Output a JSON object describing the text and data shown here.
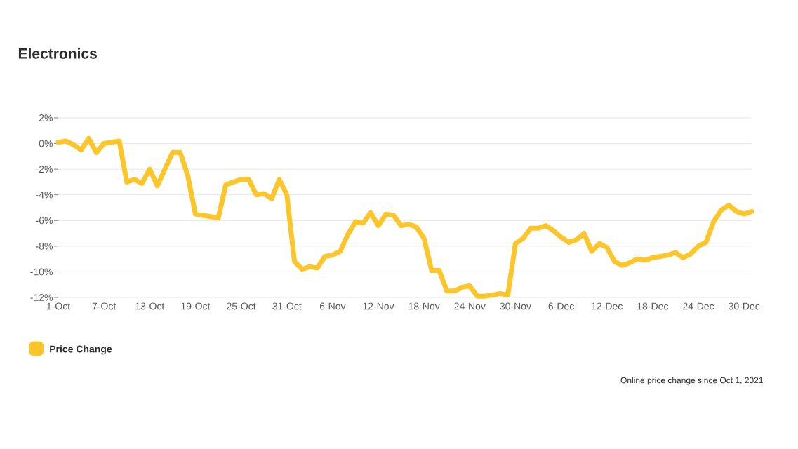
{
  "chart_data": {
    "type": "line",
    "title": "Electronics",
    "annotations": [
      "Online price change since Oct 1, 2021"
    ],
    "categories": [
      "1-Oct",
      null,
      null,
      null,
      null,
      null,
      "7-Oct",
      null,
      null,
      null,
      null,
      null,
      "13-Oct",
      null,
      null,
      null,
      null,
      null,
      "19-Oct",
      null,
      null,
      null,
      null,
      null,
      "25-Oct",
      null,
      null,
      null,
      null,
      null,
      "31-Oct",
      null,
      null,
      null,
      null,
      null,
      "6-Nov",
      null,
      null,
      null,
      null,
      null,
      "12-Nov",
      null,
      null,
      null,
      null,
      null,
      "18-Nov",
      null,
      null,
      null,
      null,
      null,
      "24-Nov",
      null,
      null,
      null,
      null,
      null,
      "30-Nov",
      null,
      null,
      null,
      null,
      null,
      "6-Dec",
      null,
      null,
      null,
      null,
      null,
      "12-Dec",
      null,
      null,
      null,
      null,
      null,
      "18-Dec",
      null,
      null,
      null,
      null,
      null,
      "24-Dec",
      null,
      null,
      null,
      null,
      null,
      "30-Dec",
      null
    ],
    "series": [
      {
        "name": "Price Change",
        "color": "#fcc62b",
        "values": [
          0.1,
          0.2,
          -0.1,
          -0.5,
          0.4,
          -0.7,
          0.0,
          0.1,
          0.2,
          -3.0,
          -2.8,
          -3.1,
          -2.0,
          -3.3,
          -2.0,
          -0.7,
          -0.7,
          -2.5,
          -5.5,
          -5.6,
          -5.7,
          -5.8,
          -3.2,
          -3.0,
          -2.8,
          -2.8,
          -4.0,
          -3.9,
          -4.3,
          -2.8,
          -4.0,
          -9.2,
          -9.8,
          -9.6,
          -9.7,
          -8.8,
          -8.7,
          -8.4,
          -7.1,
          -6.1,
          -6.2,
          -5.4,
          -6.4,
          -5.5,
          -5.6,
          -6.4,
          -6.3,
          -6.5,
          -7.4,
          -9.9,
          -9.9,
          -11.5,
          -11.5,
          -11.2,
          -11.1,
          -11.9,
          -11.9,
          -11.8,
          -11.7,
          -11.8,
          -7.8,
          -7.4,
          -6.6,
          -6.6,
          -6.4,
          -6.8,
          -7.3,
          -7.7,
          -7.5,
          -7.0,
          -8.4,
          -7.8,
          -8.1,
          -9.2,
          -9.5,
          -9.3,
          -9.0,
          -9.1,
          -8.9,
          -8.8,
          -8.7,
          -8.5,
          -8.9,
          -8.6,
          -8.0,
          -7.7,
          -6.1,
          -5.2,
          -4.8,
          -5.3,
          -5.5,
          -5.3
        ]
      }
    ],
    "ylim": [
      -12,
      2
    ],
    "yticks": [
      {
        "value": 2,
        "label": "2%"
      },
      {
        "value": 0,
        "label": "0%"
      },
      {
        "value": -2,
        "label": "-2%"
      },
      {
        "value": -4,
        "label": "-4%"
      },
      {
        "value": -6,
        "label": "-6%"
      },
      {
        "value": -8,
        "label": "-8%"
      },
      {
        "value": -10,
        "label": "-10%"
      },
      {
        "value": -12,
        "label": "-12%"
      }
    ],
    "grid": "y",
    "legend": "bottom"
  }
}
